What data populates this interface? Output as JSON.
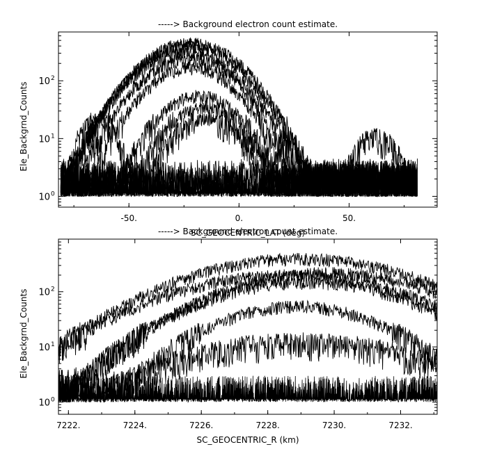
{
  "chart_data": [
    {
      "type": "line",
      "title": "-----> Background electron count estimate.",
      "xlabel": "SC_GEOCENTRIC_LAT (deg)",
      "ylabel": "Ele_Backgrnd_Counts",
      "xlim": [
        -82,
        90
      ],
      "ylim": [
        0.65,
        700
      ],
      "yscale": "log",
      "grid": false,
      "xticks": [
        {
          "value": -50,
          "label": "-50."
        },
        {
          "value": 0,
          "label": "0."
        },
        {
          "value": 50,
          "label": "50."
        }
      ],
      "yticks": [
        {
          "value": 1,
          "base": "10",
          "exp": "0"
        },
        {
          "value": 10,
          "base": "10",
          "exp": "1"
        },
        {
          "value": 100,
          "base": "10",
          "exp": "2"
        }
      ],
      "x_range": [
        -81,
        81
      ],
      "baseline": {
        "low": 1,
        "high": 3
      },
      "series": [
        {
          "peak_x": -22,
          "peak": 450,
          "width": 17
        },
        {
          "peak_x": -23,
          "peak": 390,
          "width": 17
        },
        {
          "peak_x": -24,
          "peak": 300,
          "width": 17
        },
        {
          "peak_x": -23,
          "peak": 240,
          "width": 16
        },
        {
          "peak_x": -22,
          "peak": 170,
          "width": 15
        },
        {
          "peak_x": -18,
          "peak": 55,
          "width": 14
        },
        {
          "peak_x": -16,
          "peak": 35,
          "width": 13
        },
        {
          "peak_x": -15,
          "peak": 22,
          "width": 12
        },
        {
          "peak_x": -64,
          "peak": 22,
          "width": 7
        },
        {
          "peak_x": 62,
          "peak": 10,
          "width": 9
        }
      ]
    },
    {
      "type": "line",
      "title": "-----> Background electron count estimate.",
      "xlabel": "SC_GEOCENTRIC_R (km)",
      "ylabel": "Ele_Backgrnd_Counts",
      "xlim": [
        7221.7,
        7233.1
      ],
      "ylim": [
        0.6,
        900
      ],
      "yscale": "log",
      "grid": false,
      "xticks": [
        {
          "value": 7222,
          "label": "7222."
        },
        {
          "value": 7224,
          "label": "7224."
        },
        {
          "value": 7226,
          "label": "7226."
        },
        {
          "value": 7228,
          "label": "7228."
        },
        {
          "value": 7230,
          "label": "7230."
        },
        {
          "value": 7232,
          "label": "7232."
        }
      ],
      "yticks": [
        {
          "value": 1,
          "base": "10",
          "exp": "0"
        },
        {
          "value": 10,
          "base": "10",
          "exp": "1"
        },
        {
          "value": 100,
          "base": "10",
          "exp": "2"
        }
      ],
      "x_range": [
        7221.7,
        7233.1
      ],
      "baseline": {
        "low": 1,
        "high": 3
      },
      "series": [
        {
          "peak_x": 7229.0,
          "peak": 400,
          "width": 2.7
        },
        {
          "peak_x": 7229.8,
          "peak": 220,
          "width": 2.5
        },
        {
          "peak_x": 7228.6,
          "peak": 200,
          "width": 2.8
        },
        {
          "peak_x": 7229.2,
          "peak": 150,
          "width": 2.4
        },
        {
          "peak_x": 7228.9,
          "peak": 55,
          "width": 2.0
        },
        {
          "peak_x": 7229.0,
          "peak": 12,
          "width": 3.0
        }
      ]
    }
  ]
}
